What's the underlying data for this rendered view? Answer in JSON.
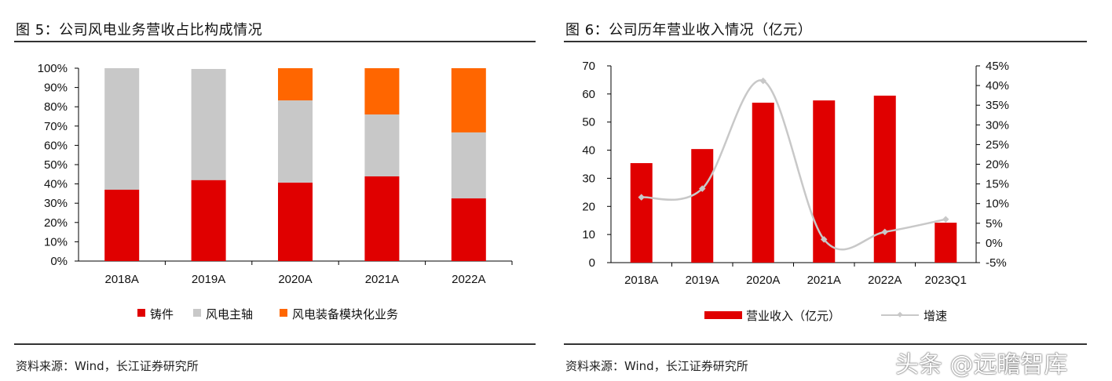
{
  "chart_data": [
    {
      "type": "bar",
      "stacked": true,
      "title": "图 5：公司风电业务营收占比构成情况",
      "categories": [
        "2018A",
        "2019A",
        "2020A",
        "2021A",
        "2022A"
      ],
      "series": [
        {
          "name": "铸件",
          "color": "#e00000",
          "values": [
            37,
            42,
            40.7,
            43.9,
            32.5
          ]
        },
        {
          "name": "风电主轴",
          "color": "#c8c8c8",
          "values": [
            63,
            57.6,
            42.6,
            32.1,
            34.2
          ]
        },
        {
          "name": "风电装备模块化业务",
          "color": "#ff6600",
          "values": [
            0,
            0,
            16.7,
            24,
            33.3
          ]
        }
      ],
      "ylim": [
        0,
        100
      ],
      "yticks": [
        "0%",
        "10%",
        "20%",
        "30%",
        "40%",
        "50%",
        "60%",
        "70%",
        "80%",
        "90%",
        "100%"
      ],
      "legend": "bottom",
      "source": "资料来源：Wind，长江证券研究所"
    },
    {
      "type": "bar+line",
      "title": "图 6：公司历年营业收入情况（亿元）",
      "categories": [
        "2018A",
        "2019A",
        "2020A",
        "2021A",
        "2022A",
        "2023Q1"
      ],
      "series": [
        {
          "name": "营业收入（亿元）",
          "axis": "left",
          "type": "bar",
          "color": "#e00000",
          "values": [
            35.4,
            40.4,
            56.9,
            57.7,
            59.4,
            14.2
          ]
        },
        {
          "name": "增速",
          "axis": "right",
          "type": "line",
          "color": "#c8c8c8",
          "values": [
            11.6,
            13.8,
            41.2,
            0.9,
            2.8,
            6.0
          ]
        }
      ],
      "ylim": [
        0,
        70
      ],
      "yticks": [
        "0",
        "10",
        "20",
        "30",
        "40",
        "50",
        "60",
        "70"
      ],
      "y2lim": [
        -5,
        45
      ],
      "y2ticks": [
        "-5%",
        "0%",
        "5%",
        "10%",
        "15%",
        "20%",
        "25%",
        "30%",
        "35%",
        "40%",
        "45%"
      ],
      "legend": "bottom",
      "source": "资料来源：Wind，长江证券研究所"
    }
  ],
  "watermark": "头条 @远瞻智库"
}
